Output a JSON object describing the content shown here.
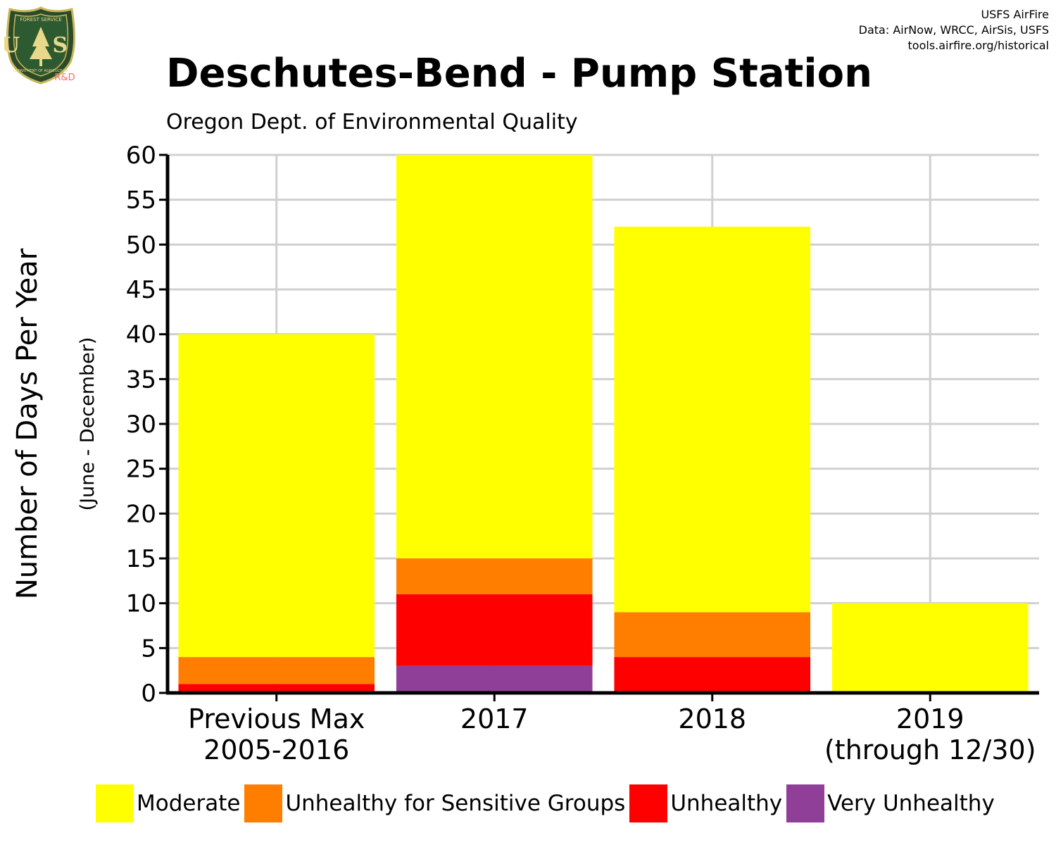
{
  "credits": {
    "line1": "USFS AirFire",
    "line2": "Data: AirNow, WRCC, AirSis, USFS",
    "line3": "tools.airfire.org/historical"
  },
  "logo": {
    "top_text": "FOREST SERVICE",
    "letters": "U S",
    "bottom_text": "DEPARTMENT OF AGRICULTURE",
    "rd": "R&D"
  },
  "colors": {
    "Moderate": "#ffff00",
    "Unhealthy for Sensitive Groups": "#ff7e00",
    "Unhealthy": "#ff0000",
    "Very Unhealthy": "#8f3f97"
  },
  "chart_data": {
    "type": "bar",
    "stacked": true,
    "title": "Deschutes-Bend - Pump Station",
    "subtitle": "Oregon Dept. of Environmental Quality",
    "ylabel": "Number of Days Per Year",
    "ylabel_sub": "(June - December)",
    "ylim": [
      0,
      60
    ],
    "yticks": [
      0,
      5,
      10,
      15,
      20,
      25,
      30,
      35,
      40,
      45,
      50,
      55,
      60
    ],
    "grid": true,
    "legend_position": "bottom",
    "categories": [
      [
        "Previous Max",
        "2005-2016"
      ],
      [
        "2017"
      ],
      [
        "2018"
      ],
      [
        "2019",
        "(through 12/30)"
      ]
    ],
    "series": [
      {
        "name": "Very Unhealthy",
        "values": [
          0,
          3,
          0,
          0
        ]
      },
      {
        "name": "Unhealthy",
        "values": [
          1,
          8,
          4,
          0
        ]
      },
      {
        "name": "Unhealthy for Sensitive Groups",
        "values": [
          3,
          4,
          5,
          0
        ]
      },
      {
        "name": "Moderate",
        "values": [
          36,
          45,
          43,
          10
        ]
      }
    ],
    "legend": [
      "Moderate",
      "Unhealthy for Sensitive Groups",
      "Unhealthy",
      "Very Unhealthy"
    ]
  }
}
